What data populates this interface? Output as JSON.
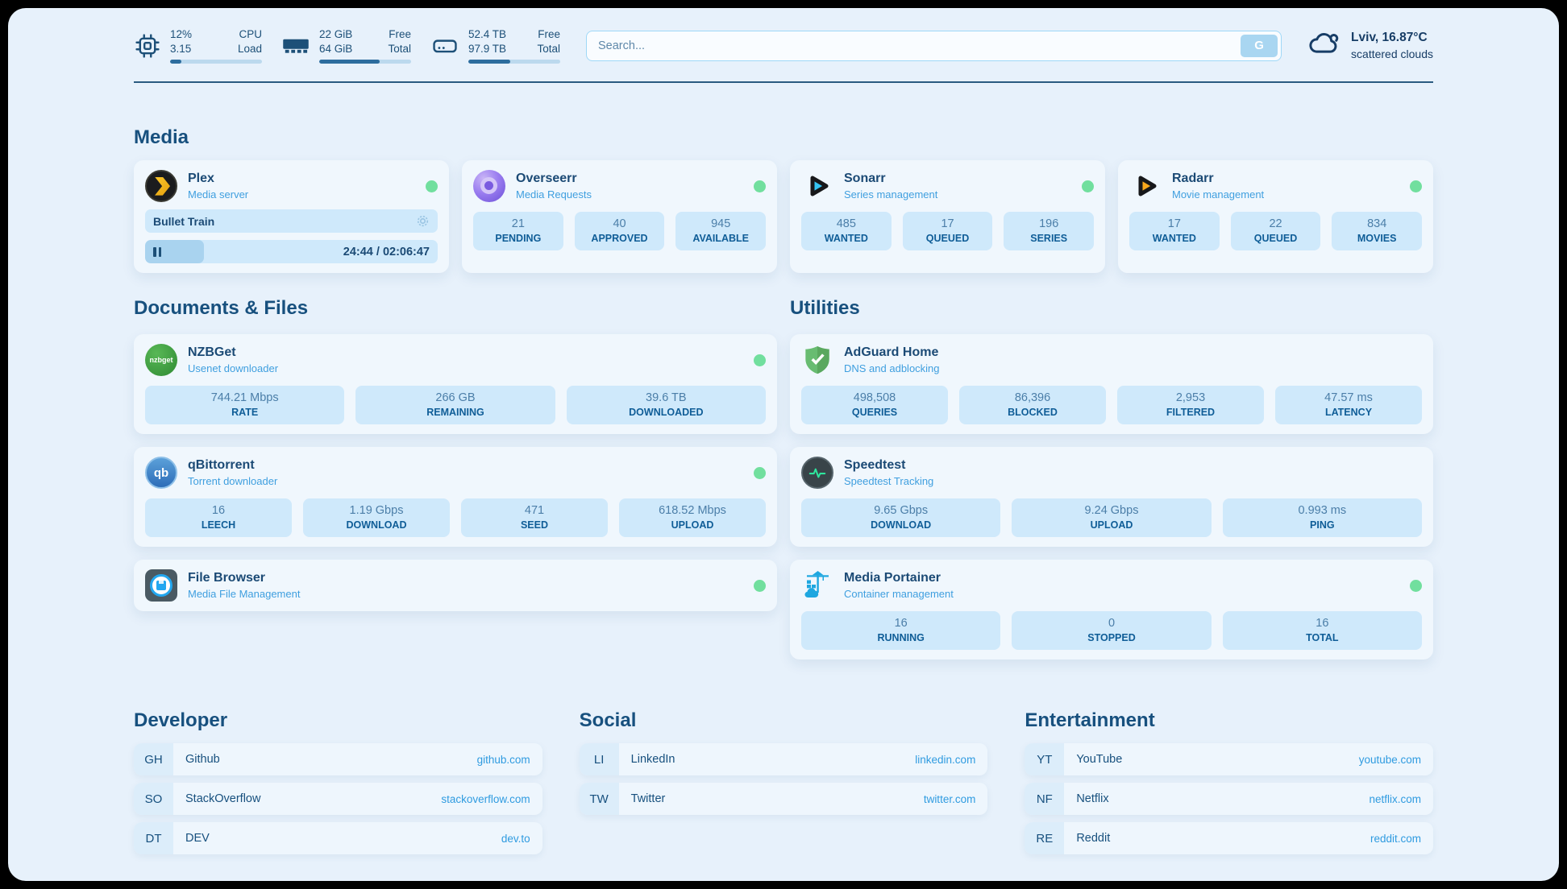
{
  "colors": {
    "page_background": "#e7f1fb",
    "card_background": "#f0f7fd",
    "stat_background": "#cfe9fb",
    "accent_navy": "#1d5078",
    "subtitle_blue": "#3f9fdf",
    "link_blue": "#2f9be0",
    "status_green": "#71df9e",
    "progress_fill": "#2d6d9e"
  },
  "topbar": {
    "cpu": {
      "icon": "cpu-chip-icon",
      "value1": "12%",
      "label1": "CPU",
      "value2": "3.15",
      "label2": "Load",
      "percent_used": 12
    },
    "ram": {
      "icon": "ram-icon",
      "value1": "22 GiB",
      "label1": "Free",
      "value2": "64 GiB",
      "label2": "Total",
      "percent_used": 66
    },
    "disk": {
      "icon": "disk-icon",
      "value1": "52.4 TB",
      "label1": "Free",
      "value2": "97.9 TB",
      "label2": "Total",
      "percent_used": 46
    },
    "search": {
      "placeholder": "Search...",
      "button_label": "G"
    },
    "weather": {
      "icon": "cloud-icon",
      "location_temp": "Lviv, 16.87°C",
      "condition": "scattered clouds"
    }
  },
  "sections": {
    "media": {
      "title": "Media",
      "plex": {
        "icon": "plex-logo",
        "name": "Plex",
        "subtitle": "Media server",
        "status": "online",
        "now_playing": "Bullet Train",
        "time": "24:44 / 02:06:47",
        "progress_percent": 20
      },
      "overseerr": {
        "icon": "overseerr-logo",
        "name": "Overseerr",
        "subtitle": "Media Requests",
        "status": "online",
        "stats": [
          {
            "value": "21",
            "label": "PENDING"
          },
          {
            "value": "40",
            "label": "APPROVED"
          },
          {
            "value": "945",
            "label": "AVAILABLE"
          }
        ]
      },
      "sonarr": {
        "icon": "sonarr-logo",
        "name": "Sonarr",
        "subtitle": "Series management",
        "status": "online",
        "stats": [
          {
            "value": "485",
            "label": "WANTED"
          },
          {
            "value": "17",
            "label": "QUEUED"
          },
          {
            "value": "196",
            "label": "SERIES"
          }
        ]
      },
      "radarr": {
        "icon": "radarr-logo",
        "name": "Radarr",
        "subtitle": "Movie management",
        "status": "online",
        "stats": [
          {
            "value": "17",
            "label": "WANTED"
          },
          {
            "value": "22",
            "label": "QUEUED"
          },
          {
            "value": "834",
            "label": "MOVIES"
          }
        ]
      }
    },
    "documents": {
      "title": "Documents & Files",
      "nzbget": {
        "icon": "nzbget-logo",
        "name": "NZBGet",
        "subtitle": "Usenet downloader",
        "status": "online",
        "stats": [
          {
            "value": "744.21 Mbps",
            "label": "RATE"
          },
          {
            "value": "266 GB",
            "label": "REMAINING"
          },
          {
            "value": "39.6 TB",
            "label": "DOWNLOADED"
          }
        ]
      },
      "qbittorrent": {
        "icon": "qbittorrent-logo",
        "name": "qBittorrent",
        "subtitle": "Torrent downloader",
        "status": "online",
        "stats": [
          {
            "value": "16",
            "label": "LEECH"
          },
          {
            "value": "1.19 Gbps",
            "label": "DOWNLOAD"
          },
          {
            "value": "471",
            "label": "SEED"
          },
          {
            "value": "618.52 Mbps",
            "label": "UPLOAD"
          }
        ]
      },
      "filebrowser": {
        "icon": "filebrowser-logo",
        "name": "File Browser",
        "subtitle": "Media File Management",
        "status": "online"
      }
    },
    "utilities": {
      "title": "Utilities",
      "adguard": {
        "icon": "adguard-shield-logo",
        "name": "AdGuard Home",
        "subtitle": "DNS and adblocking",
        "stats": [
          {
            "value": "498,508",
            "label": "QUERIES"
          },
          {
            "value": "86,396",
            "label": "BLOCKED"
          },
          {
            "value": "2,953",
            "label": "FILTERED"
          },
          {
            "value": "47.57 ms",
            "label": "LATENCY"
          }
        ]
      },
      "speedtest": {
        "icon": "speedtest-pulse-logo",
        "name": "Speedtest",
        "subtitle": "Speedtest Tracking",
        "stats": [
          {
            "value": "9.65 Gbps",
            "label": "DOWNLOAD"
          },
          {
            "value": "9.24 Gbps",
            "label": "UPLOAD"
          },
          {
            "value": "0.993 ms",
            "label": "PING"
          }
        ]
      },
      "portainer": {
        "icon": "portainer-crane-logo",
        "name": "Media Portainer",
        "subtitle": "Container management",
        "status": "online",
        "stats": [
          {
            "value": "16",
            "label": "RUNNING"
          },
          {
            "value": "0",
            "label": "STOPPED"
          },
          {
            "value": "16",
            "label": "TOTAL"
          }
        ]
      }
    },
    "developer": {
      "title": "Developer",
      "links": [
        {
          "abbr": "GH",
          "name": "Github",
          "url": "github.com"
        },
        {
          "abbr": "SO",
          "name": "StackOverflow",
          "url": "stackoverflow.com"
        },
        {
          "abbr": "DT",
          "name": "DEV",
          "url": "dev.to"
        }
      ]
    },
    "social": {
      "title": "Social",
      "links": [
        {
          "abbr": "LI",
          "name": "LinkedIn",
          "url": "linkedin.com"
        },
        {
          "abbr": "TW",
          "name": "Twitter",
          "url": "twitter.com"
        }
      ]
    },
    "entertainment": {
      "title": "Entertainment",
      "links": [
        {
          "abbr": "YT",
          "name": "YouTube",
          "url": "youtube.com"
        },
        {
          "abbr": "NF",
          "name": "Netflix",
          "url": "netflix.com"
        },
        {
          "abbr": "RE",
          "name": "Reddit",
          "url": "reddit.com"
        }
      ]
    }
  }
}
